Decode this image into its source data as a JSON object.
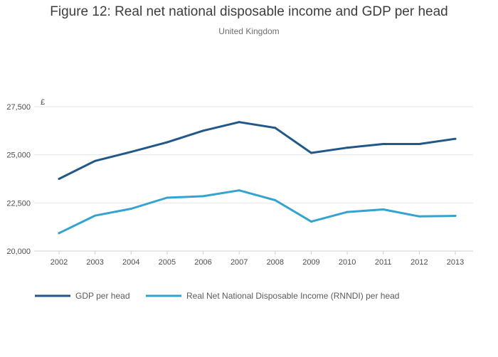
{
  "chart_data": {
    "type": "line",
    "title": "Figure 12: Real net national disposable income and GDP per head",
    "subtitle": "United Kingdom",
    "ylabel": "£",
    "xlabel": "",
    "x": [
      "2002",
      "2003",
      "2004",
      "2005",
      "2006",
      "2007",
      "2008",
      "2009",
      "2010",
      "2011",
      "2012",
      "2013"
    ],
    "ylim": [
      20000,
      27500
    ],
    "yticks": [
      20000,
      22500,
      25000,
      27500
    ],
    "ytick_labels": [
      "20,000",
      "22,500",
      "25,000",
      "27,500"
    ],
    "grid": true,
    "legend_position": "bottom-left",
    "series": [
      {
        "name": "GDP per head",
        "color": "#22578a",
        "values": [
          23750,
          24680,
          25150,
          25650,
          26250,
          26700,
          26400,
          25100,
          25370,
          25560,
          25560,
          25830
        ]
      },
      {
        "name": "Real Net National Disposable Income (RNNDI) per head",
        "color": "#33a3d0",
        "values": [
          20930,
          21840,
          22200,
          22770,
          22850,
          23150,
          22640,
          21530,
          22030,
          22160,
          21800,
          21830
        ]
      }
    ]
  }
}
